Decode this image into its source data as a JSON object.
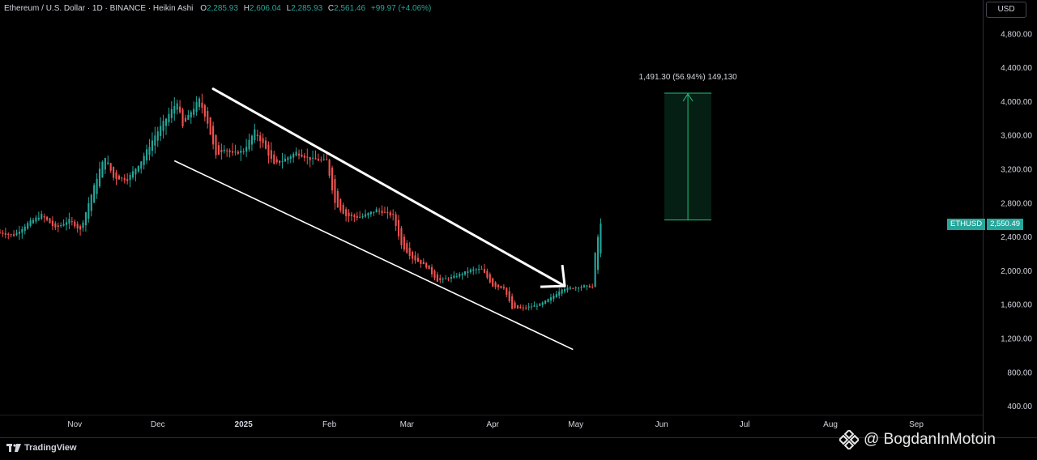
{
  "header": {
    "symbol": "Ethereum / U.S. Dollar · 1D · BINANCE · Heikin Ashi",
    "o_label": "O",
    "o_value": "2,285.93",
    "h_label": "H",
    "h_value": "2,606.04",
    "l_label": "L",
    "l_value": "2,285.93",
    "c_label": "C",
    "c_value": "2,561.46",
    "change": "+99.97 (+4.06%)"
  },
  "currency_button": "USD",
  "footer": {
    "logo_text": "TradingView",
    "watermark": "@ BogdanInMotoin"
  },
  "measure_label": "1,491.30 (56.94%) 149,130",
  "price_tag": {
    "symbol": "ETHUSD",
    "value": "2,550.49"
  },
  "colors": {
    "up": "#26a69a",
    "down": "#ef5350",
    "tag": "#26a69a",
    "measure": "#1ec27a"
  },
  "chart_data": {
    "type": "candlestick",
    "style": "Heikin Ashi",
    "title": "Ethereum / U.S. Dollar · 1D · BINANCE · Heikin Ashi",
    "ylim": [
      300,
      5200
    ],
    "y_ticks": [
      400,
      800,
      1200,
      1600,
      2000,
      2400,
      2800,
      3200,
      3600,
      4000,
      4400,
      4800
    ],
    "y_tick_labels": [
      "400.00",
      "800.00",
      "1,200.00",
      "1,600.00",
      "2,000.00",
      "2,400.00",
      "2,800.00",
      "3,200.00",
      "3,600.00",
      "4,000.00",
      "4,400.00",
      "4,800.00"
    ],
    "x_ticks": [
      {
        "label": "Nov",
        "date": "2024-11-01"
      },
      {
        "label": "Dec",
        "date": "2024-12-01"
      },
      {
        "label": "2025",
        "date": "2025-01-01"
      },
      {
        "label": "Feb",
        "date": "2025-02-01"
      },
      {
        "label": "Mar",
        "date": "2025-03-01"
      },
      {
        "label": "Apr",
        "date": "2025-04-01"
      },
      {
        "label": "May",
        "date": "2025-05-01"
      },
      {
        "label": "Jun",
        "date": "2025-06-01"
      },
      {
        "label": "Jul",
        "date": "2025-07-01"
      },
      {
        "label": "Aug",
        "date": "2025-08-01"
      },
      {
        "label": "Sep",
        "date": "2025-09-01"
      }
    ],
    "xlim": [
      "2024-10-05",
      "2025-09-25"
    ],
    "close_path": [
      [
        "2024-10-05",
        2450
      ],
      [
        "2024-10-10",
        2420
      ],
      [
        "2024-10-15",
        2560
      ],
      [
        "2024-10-20",
        2660
      ],
      [
        "2024-10-25",
        2500
      ],
      [
        "2024-10-30",
        2600
      ],
      [
        "2024-11-03",
        2480
      ],
      [
        "2024-11-06",
        2800
      ],
      [
        "2024-11-10",
        3200
      ],
      [
        "2024-11-12",
        3350
      ],
      [
        "2024-11-15",
        3100
      ],
      [
        "2024-11-20",
        3080
      ],
      [
        "2024-11-25",
        3300
      ],
      [
        "2024-11-30",
        3600
      ],
      [
        "2024-12-05",
        3850
      ],
      [
        "2024-12-08",
        4000
      ],
      [
        "2024-12-10",
        3700
      ],
      [
        "2024-12-13",
        3880
      ],
      [
        "2024-12-16",
        4020
      ],
      [
        "2024-12-19",
        3750
      ],
      [
        "2024-12-22",
        3350
      ],
      [
        "2024-12-25",
        3450
      ],
      [
        "2024-12-28",
        3380
      ],
      [
        "2025-01-01",
        3420
      ],
      [
        "2025-01-05",
        3650
      ],
      [
        "2025-01-08",
        3500
      ],
      [
        "2025-01-12",
        3250
      ],
      [
        "2025-01-16",
        3320
      ],
      [
        "2025-01-20",
        3400
      ],
      [
        "2025-01-25",
        3320
      ],
      [
        "2025-01-31",
        3300
      ],
      [
        "2025-02-03",
        2800
      ],
      [
        "2025-02-07",
        2650
      ],
      [
        "2025-02-12",
        2630
      ],
      [
        "2025-02-18",
        2720
      ],
      [
        "2025-02-24",
        2650
      ],
      [
        "2025-02-27",
        2300
      ],
      [
        "2025-03-03",
        2150
      ],
      [
        "2025-03-08",
        2050
      ],
      [
        "2025-03-12",
        1880
      ],
      [
        "2025-03-18",
        1930
      ],
      [
        "2025-03-24",
        2010
      ],
      [
        "2025-03-28",
        2020
      ],
      [
        "2025-04-01",
        1820
      ],
      [
        "2025-04-05",
        1800
      ],
      [
        "2025-04-08",
        1550
      ],
      [
        "2025-04-12",
        1560
      ],
      [
        "2025-04-18",
        1600
      ],
      [
        "2025-04-22",
        1680
      ],
      [
        "2025-04-26",
        1790
      ],
      [
        "2025-04-30",
        1800
      ],
      [
        "2025-05-04",
        1820
      ],
      [
        "2025-05-07",
        1810
      ],
      [
        "2025-05-08",
        2200
      ],
      [
        "2025-05-09",
        2400
      ],
      [
        "2025-05-10",
        2550
      ]
    ],
    "last_price": 2550.49,
    "annotations": {
      "channel_upper": [
        [
          "2024-12-21",
          4150
        ],
        [
          "2025-04-27",
          1820
        ]
      ],
      "channel_lower": [
        [
          "2024-12-07",
          3300
        ],
        [
          "2025-04-30",
          1070
        ]
      ],
      "measure": {
        "from": 2600,
        "to": 4100,
        "date_start": "2025-06-02",
        "date_end": "2025-06-19",
        "label": "1,491.30 (56.94%) 149,130"
      }
    }
  }
}
